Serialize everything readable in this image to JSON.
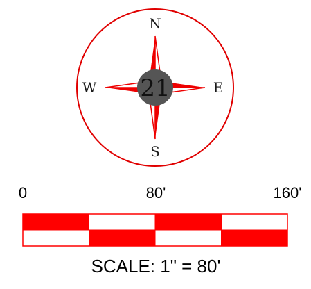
{
  "compass": {
    "north_label": "N",
    "south_label": "S",
    "east_label": "E",
    "west_label": "W",
    "center_number": "21",
    "accent_color": "#ee0000",
    "center_color": "#555555"
  },
  "scale_bar": {
    "tick_labels": [
      "0",
      "80'",
      "160'"
    ],
    "caption": "SCALE: 1\" = 80'",
    "segments_per_row": 4,
    "top_row_fill_pattern": [
      true,
      false,
      true,
      false
    ],
    "bottom_row_fill_pattern": [
      false,
      true,
      false,
      true
    ],
    "fill_color": "#ff0000",
    "empty_color": "#ffffff"
  }
}
